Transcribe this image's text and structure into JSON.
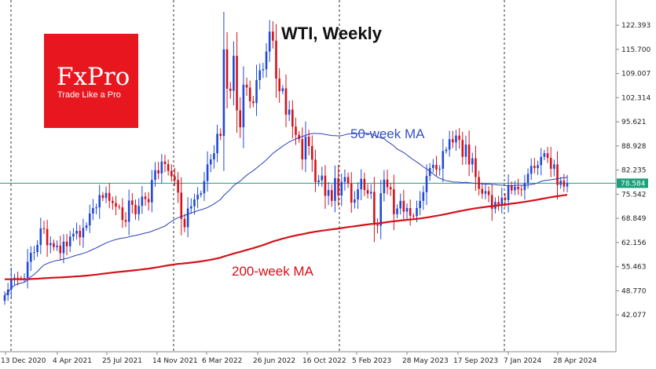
{
  "chart_data": {
    "type": "candlestick",
    "title": "WTI, Weekly",
    "annotations": {
      "ma50": "50-week MA",
      "ma200": "200-week MA"
    },
    "logo": {
      "brand": "FxPro",
      "tagline": "Trade Like a Pro"
    },
    "current_price": {
      "label": "78.584",
      "value": 78.584
    },
    "y_ticks": [
      "122.393",
      "115.700",
      "109.007",
      "102.314",
      "95.621",
      "88.928",
      "82.235",
      "75.542",
      "68.849",
      "62.156",
      "55.463",
      "48.770",
      "42.077"
    ],
    "ylim": [
      35.8,
      127.2
    ],
    "x_ticks": [
      "13 Dec 2020",
      "4 Apr 2021",
      "25 Jul 2021",
      "14 Nov 2021",
      "6 Mar 2022",
      "26 Jun 2022",
      "16 Oct 2022",
      "5 Feb 2023",
      "28 May 2023",
      "17 Sep 2023",
      "7 Jan 2024",
      "28 Apr 2024"
    ],
    "grid": "vertical dashed separators at yearly boundaries",
    "colors": {
      "up": "#1f49d6",
      "down": "#d4111a",
      "ma50": "#2a3fb8",
      "ma200": "#d4111a",
      "price_line": "#1aa07a",
      "logo_bg": "#e8161f"
    },
    "closes": [
      47.5,
      49.1,
      52.1,
      52.4,
      52.3,
      52.2,
      52.3,
      56.8,
      59.3,
      59.5,
      61.5,
      66.1,
      65.9,
      61.4,
      62.0,
      60.9,
      61.3,
      59.2,
      62.4,
      61.1,
      63.8,
      64.6,
      65.4,
      63.6,
      66.2,
      66.9,
      70.2,
      71.7,
      71.9,
      75.3,
      74.5,
      75.9,
      73.7,
      73.1,
      72.1,
      71.9,
      68.4,
      67.9,
      73.8,
      72.6,
      70.0,
      72.3,
      74.9,
      74.2,
      73.3,
      79.5,
      82.2,
      81.3,
      84.6,
      83.9,
      82.0,
      80.5,
      79.5,
      76.0,
      68.7,
      66.4,
      71.6,
      72.2,
      74.1,
      75.4,
      75.8,
      79.2,
      83.8,
      85.2,
      86.9,
      92.3,
      91.7,
      115.7,
      104.8,
      104.2,
      113.9,
      98.8,
      94.1,
      105.9,
      105.1,
      101.3,
      100.8,
      107.2,
      109.9,
      110.2,
      115.1,
      120.6,
      118.1,
      107.6,
      104.1,
      104.9,
      97.6,
      99.0,
      94.3,
      92.0,
      90.8,
      85.2,
      91.5,
      88.9,
      85.1,
      78.9,
      79.4,
      80.7,
      75.1,
      76.7,
      73.7,
      80.0,
      75.2,
      79.0,
      80.3,
      78.5,
      73.2,
      74.1,
      76.9,
      79.8,
      76.7,
      75.7,
      76.2,
      67.1,
      66.8,
      75.8,
      79.6,
      77.5,
      76.9,
      70.0,
      71.6,
      73.7,
      70.7,
      71.7,
      69.6,
      69.5,
      71.7,
      73.7,
      76.1,
      80.6,
      82.8,
      83.7,
      82.4,
      82.6,
      87.5,
      87.9,
      90.8,
      89.9,
      91.8,
      90.6,
      85.9,
      89.3,
      83.8,
      85.5,
      80.3,
      77.0,
      75.7,
      76.4,
      75.3,
      71.5,
      73.4,
      72.3,
      74.6,
      73.9,
      78.0,
      76.6,
      77.6,
      76.9,
      76.7,
      78.6,
      81.2,
      83.4,
      82.8,
      83.6,
      85.9,
      86.9,
      85.6,
      82.6,
      83.8,
      78.1,
      79.3,
      77.7,
      78.6
    ]
  }
}
